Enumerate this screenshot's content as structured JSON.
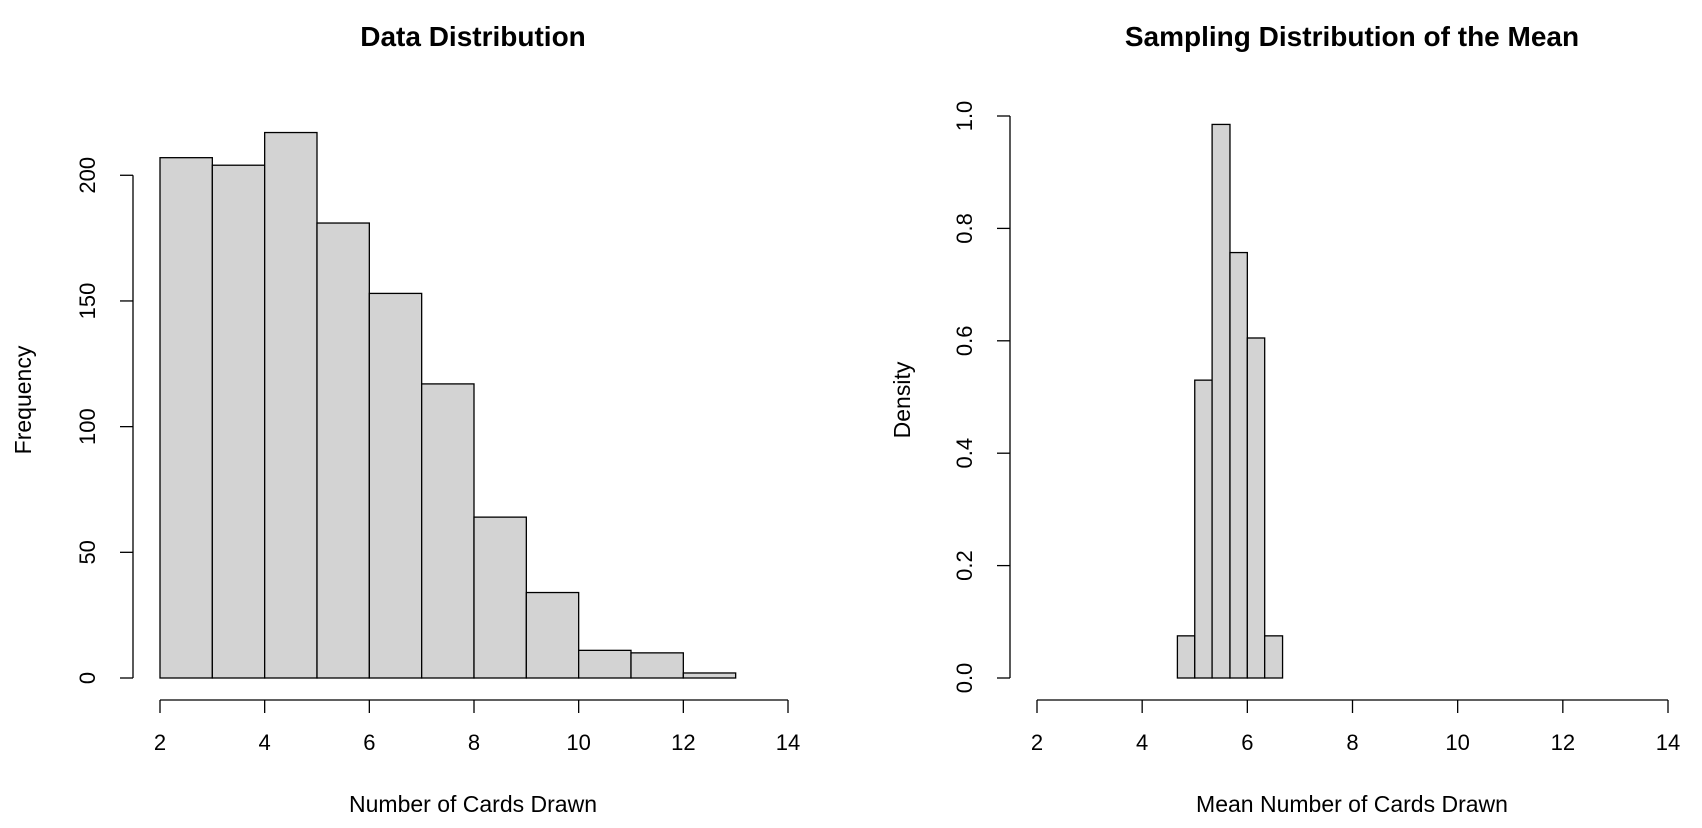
{
  "chart_data": [
    {
      "type": "bar",
      "title": "Data Distribution",
      "xlabel": "Number of Cards Drawn",
      "ylabel": "Frequency",
      "bins": [
        [
          2,
          3
        ],
        [
          3,
          4
        ],
        [
          4,
          5
        ],
        [
          5,
          6
        ],
        [
          6,
          7
        ],
        [
          7,
          8
        ],
        [
          8,
          9
        ],
        [
          9,
          10
        ],
        [
          10,
          11
        ],
        [
          11,
          12
        ],
        [
          12,
          13
        ]
      ],
      "values": [
        207,
        204,
        217,
        181,
        153,
        117,
        64,
        34,
        11,
        10,
        2
      ],
      "xlim": [
        2,
        14
      ],
      "ylim": [
        0,
        220
      ],
      "xticks": [
        2,
        4,
        6,
        8,
        10,
        12,
        14
      ],
      "yticks": [
        0,
        50,
        100,
        150,
        200
      ],
      "grid": false
    },
    {
      "type": "bar",
      "title": "Sampling Distribution of the Mean",
      "xlabel": "Mean Number of Cards Drawn",
      "ylabel": "Density",
      "bin_edges": [
        2.0,
        2.33,
        2.67,
        3.0,
        3.33,
        3.67,
        4.0,
        4.33,
        4.67,
        5.0,
        5.33,
        5.67,
        6.0,
        6.33,
        6.67,
        7.0,
        7.33,
        7.67,
        8.0,
        8.33,
        8.67,
        9.0,
        9.33,
        9.67,
        10.0,
        10.33,
        10.67,
        11.0,
        11.33,
        11.67,
        12.0,
        12.33,
        12.67,
        13.0,
        13.33,
        13.67
      ],
      "values": [
        0,
        0,
        0,
        0,
        0,
        0,
        0,
        0,
        0.075,
        0.53,
        0.985,
        0.757,
        0.605,
        0.075,
        0,
        0,
        0,
        0,
        0,
        0,
        0,
        0,
        0,
        0,
        0,
        0,
        0,
        0,
        0,
        0,
        0,
        0,
        0,
        0,
        0
      ],
      "xlim": [
        2,
        14
      ],
      "ylim": [
        0,
        1.0
      ],
      "xticks": [
        2,
        4,
        6,
        8,
        10,
        12,
        14
      ],
      "yticks": [
        "0.0",
        "0.2",
        "0.4",
        "0.6",
        "0.8",
        "1.0"
      ],
      "grid": false
    }
  ]
}
